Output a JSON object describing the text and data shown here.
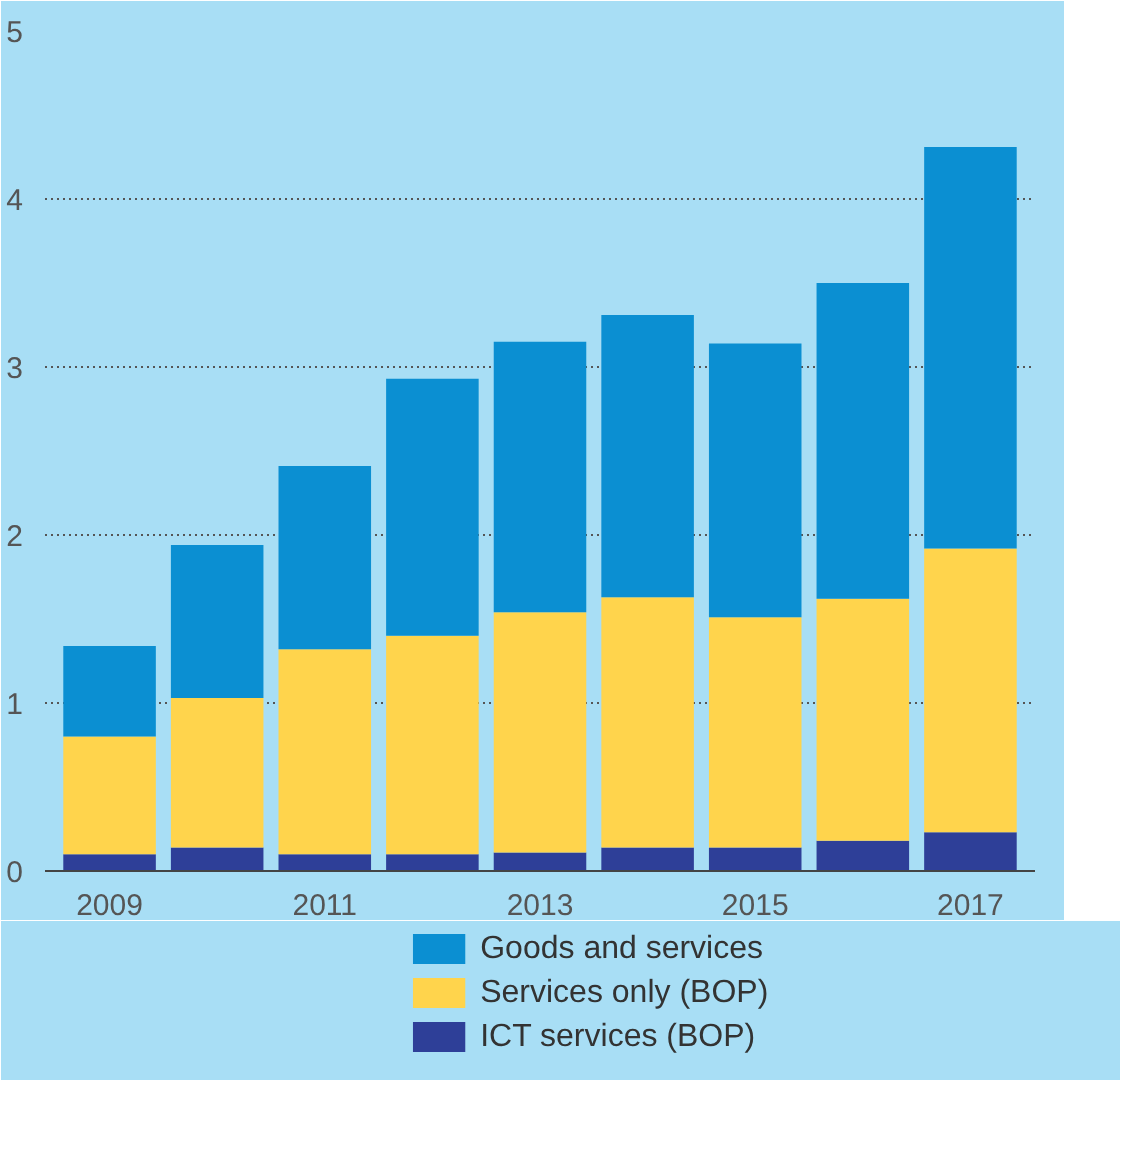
{
  "chart_data": {
    "type": "bar",
    "stacked": true,
    "categories": [
      "2009",
      null,
      "2011",
      null,
      "2013",
      null,
      "2015",
      null,
      "2017"
    ],
    "series": [
      {
        "name": "ICT services (BOP)",
        "color": "#2e3f98",
        "values": [
          0.1,
          0.14,
          0.1,
          0.1,
          0.11,
          0.14,
          0.14,
          0.18,
          0.23
        ]
      },
      {
        "name": "Services only (BOP)",
        "color": "#ffd44c",
        "values": [
          0.7,
          0.89,
          1.22,
          1.3,
          1.43,
          1.49,
          1.37,
          1.44,
          1.69
        ]
      },
      {
        "name": "Goods and services",
        "color": "#0b8fd2",
        "values": [
          0.54,
          0.91,
          1.09,
          1.53,
          1.61,
          1.68,
          1.63,
          1.88,
          2.39
        ]
      }
    ],
    "ylim": [
      0,
      5
    ],
    "yticks": [
      0,
      1,
      2,
      3,
      4,
      5
    ],
    "grid": "y",
    "legend": "bottom"
  }
}
